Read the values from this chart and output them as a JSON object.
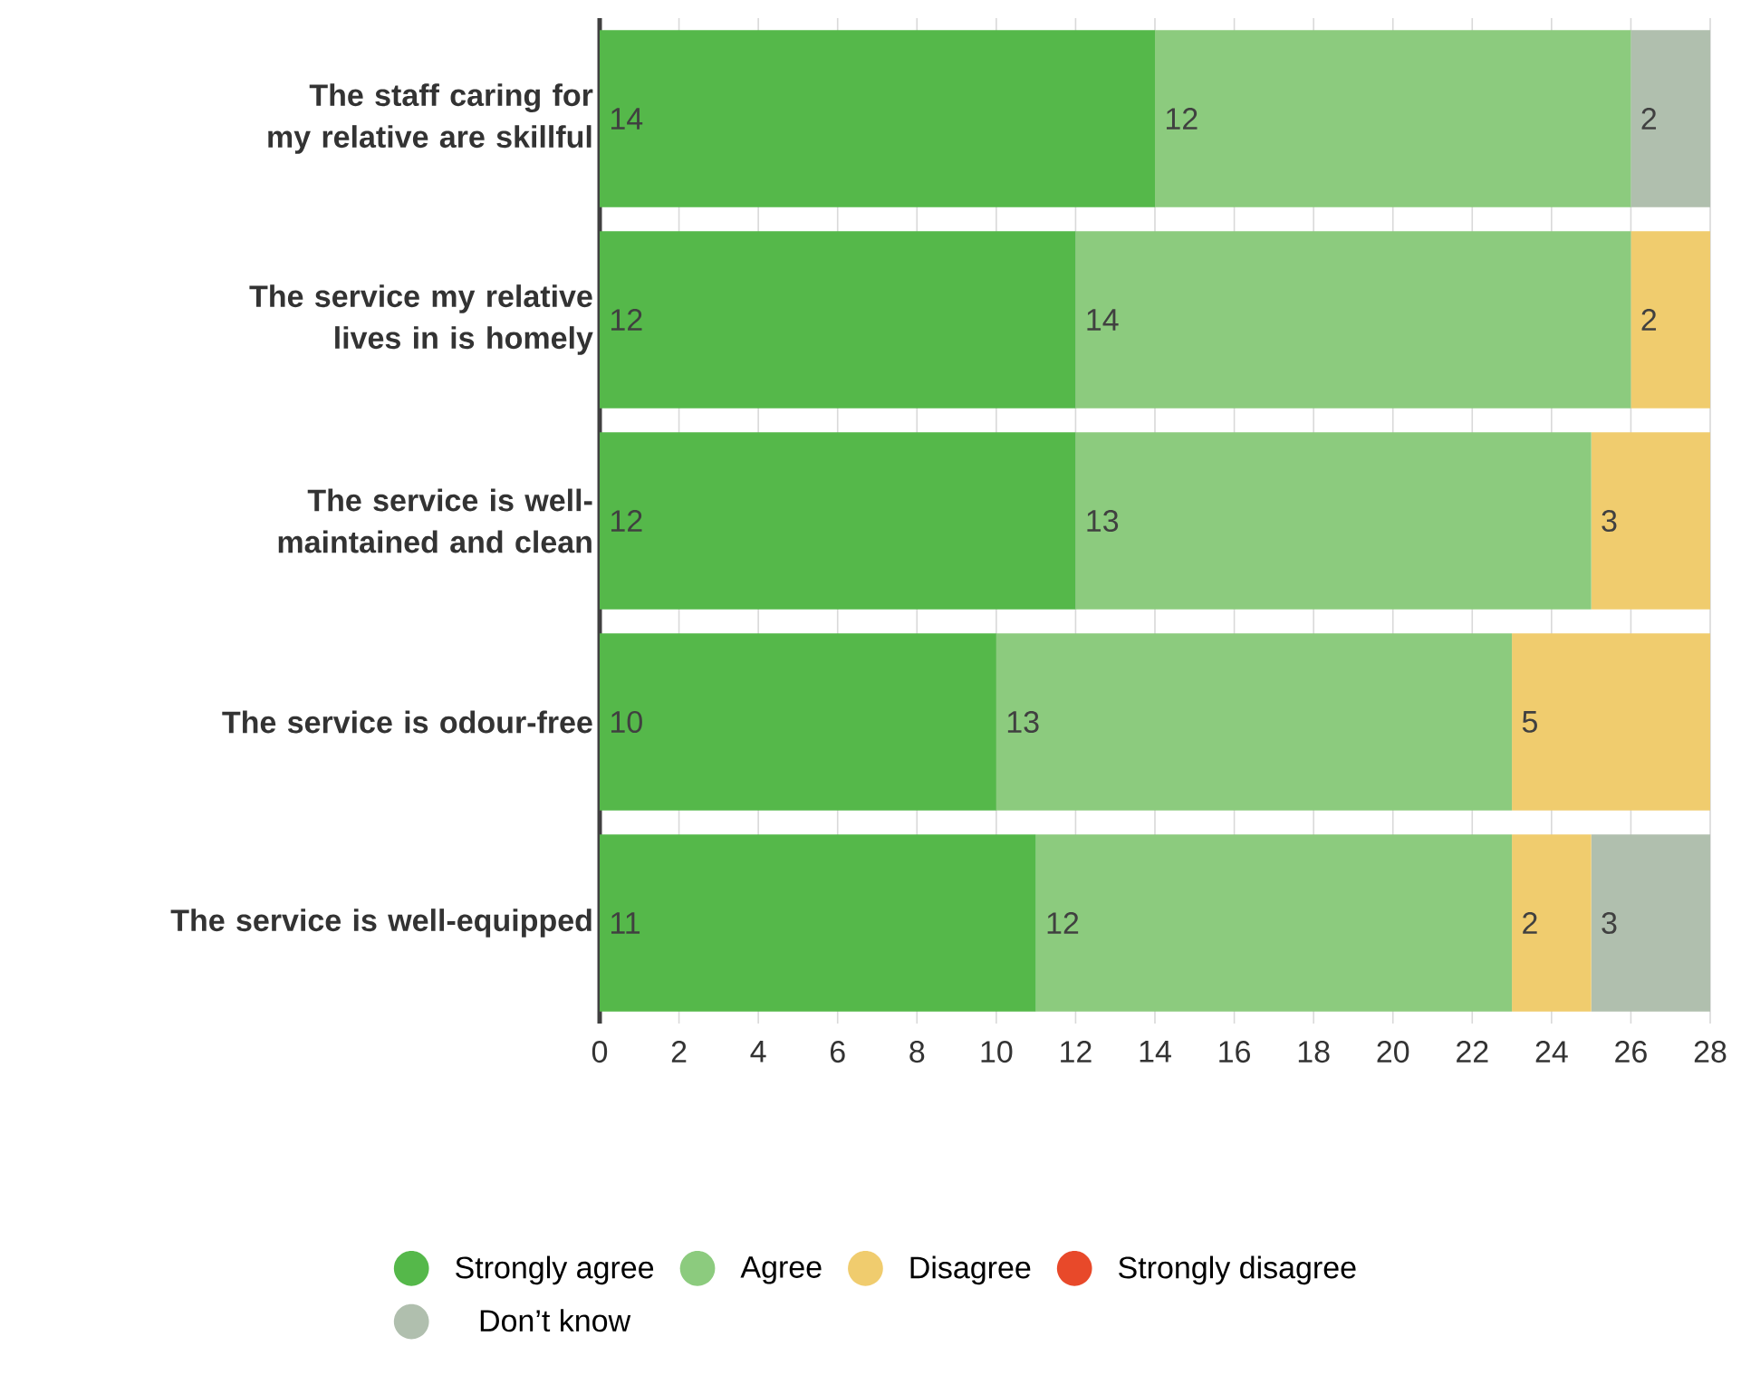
{
  "chart_data": {
    "type": "bar",
    "orientation": "horizontal",
    "stacked": true,
    "categories": [
      "The staff caring for my relative are skillful",
      "The service my relative lives in is homely",
      "The service is well-maintained and clean",
      "The service is odour-free",
      "The service is well-equipped"
    ],
    "series": [
      {
        "name": "Strongly agree",
        "color": "#55b84a",
        "values": [
          14,
          12,
          12,
          10,
          11
        ],
        "value_labels": [
          "14",
          "12",
          "12",
          "10",
          "11"
        ]
      },
      {
        "name": "Agree",
        "color": "#8ccb7e",
        "values": [
          12,
          14,
          13,
          13,
          12
        ],
        "value_labels": [
          "12",
          "14",
          "13",
          "13",
          "12"
        ]
      },
      {
        "name": "Disagree",
        "color": "#f0cc6e",
        "values": [
          0,
          2,
          3,
          5,
          2
        ],
        "value_labels": [
          null,
          "2",
          "3",
          "5",
          "2"
        ]
      },
      {
        "name": "Strongly disagree",
        "color": "#e8492a",
        "values": [
          0,
          0,
          0,
          0,
          0
        ],
        "value_labels": [
          null,
          null,
          null,
          null,
          null
        ]
      },
      {
        "name": "Don’t know",
        "color": "#b0bfae",
        "values": [
          2,
          0,
          0,
          0,
          3
        ],
        "value_labels": [
          "2",
          null,
          null,
          null,
          "3"
        ]
      }
    ],
    "xlim": [
      0,
      28
    ],
    "xticks": [
      0,
      2,
      4,
      6,
      8,
      10,
      12,
      14,
      16,
      18,
      20,
      22,
      24,
      26,
      28
    ],
    "grid": "x",
    "legend": "bottom"
  }
}
